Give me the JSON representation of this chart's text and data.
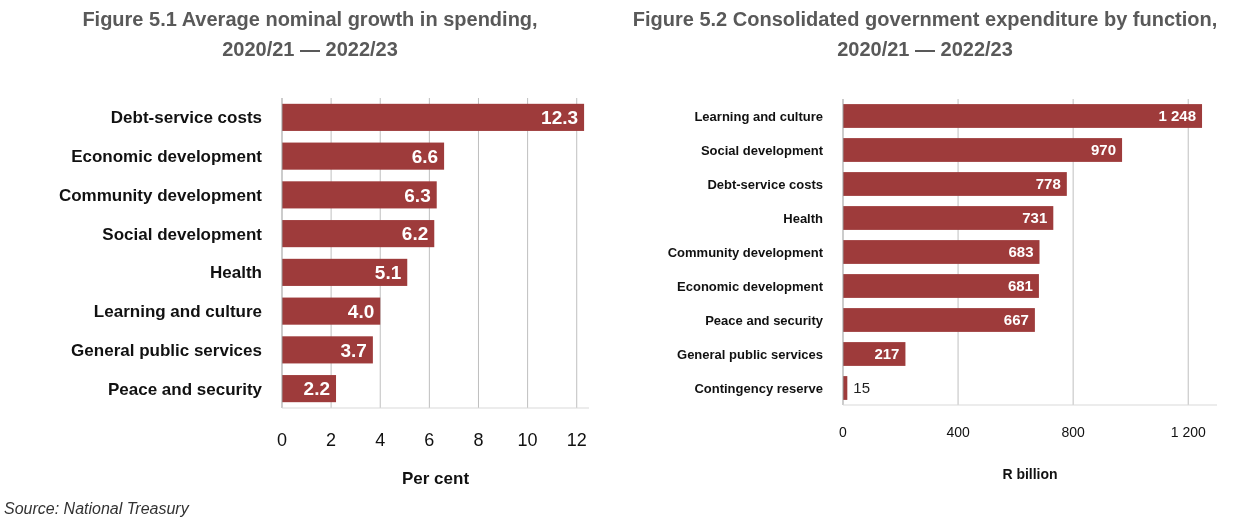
{
  "chart_data": [
    {
      "type": "bar",
      "orientation": "horizontal",
      "title": "Figure 5.1 Average nominal growth in spending, 2020/21 — 2022/23",
      "xlabel": "Per cent",
      "categories": [
        "Debt-service costs",
        "Economic development",
        "Community development",
        "Social development",
        "Health",
        "Learning and culture",
        "General public services",
        "Peace and security"
      ],
      "values": [
        12.3,
        6.6,
        6.3,
        6.2,
        5.1,
        4.0,
        3.7,
        2.2
      ],
      "value_labels": [
        "12.3",
        "6.6",
        "6.3",
        "6.2",
        "5.1",
        "4.0",
        "3.7",
        "2.2"
      ],
      "color": "#9e3b3b",
      "xlim": [
        0,
        12.5
      ],
      "xticks": [
        0,
        2,
        4,
        6,
        8,
        10,
        12
      ],
      "grid": "x",
      "annotations": [
        "Source: National Treasury"
      ]
    },
    {
      "type": "bar",
      "orientation": "horizontal",
      "title": "Figure 5.2 Consolidated government expenditure by function, 2020/21 — 2022/23",
      "xlabel": "R billion",
      "categories": [
        "Learning and culture",
        "Social development",
        "Debt-service costs",
        "Health",
        "Community development",
        "Economic development",
        "Peace and security",
        "General public services",
        "Contingency reserve"
      ],
      "values": [
        1248,
        970,
        778,
        731,
        683,
        681,
        667,
        217,
        15
      ],
      "value_labels": [
        "1 248",
        "970",
        "778",
        "731",
        "683",
        "681",
        "667",
        "217",
        "15"
      ],
      "color": "#9e3b3b",
      "xlim": [
        0,
        1300
      ],
      "xticks": [
        0,
        400,
        800,
        {
          "value": 1200,
          "label": "1 200"
        }
      ],
      "grid": "x"
    }
  ]
}
